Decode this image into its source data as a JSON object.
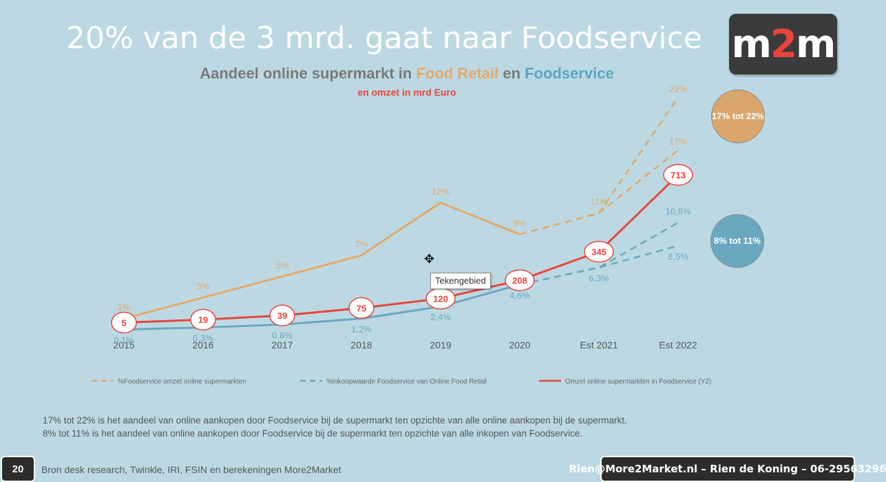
{
  "slide": {
    "title": "20% van de 3 mrd. gaat naar Foodservice",
    "logo": {
      "prefix": "m",
      "accent": "2",
      "suffix": "m"
    },
    "page_number": "20",
    "source": "Bron desk research, Twinkle, IRI, FSIN en berekeningen More2Market",
    "contact": "Rien@More2Market.nl – Rien de Koning – 06-29563296",
    "notes": [
      "17% tot 22% is het aandeel van online aankopen door Foodservice bij de supermarkt ten opzichte van alle online aankopen bij de supermarkt.",
      "8% tot 11% is het aandeel van online aankopen door Foodservice bij de supermarkt ten opzichte van alle inkopen van Foodservice."
    ],
    "badge_food_retail": "17% tot 22%",
    "badge_foodservice": "8% tot 11%",
    "tooltip": "Tekengebied"
  },
  "colors": {
    "food_retail": "#e2aa6a",
    "foodservice": "#6aa8c0",
    "omzet": "#e8453c",
    "background": "#bcd9e3"
  },
  "chart_data": {
    "type": "line",
    "title_parts": [
      "Aandeel online supermarkt in ",
      "Food Retail",
      " en ",
      "Foodservice"
    ],
    "subtitle": "en omzet in mrd Euro",
    "categories": [
      "2015",
      "2016",
      "2017",
      "2018",
      "2019",
      "2020",
      "Est 2021",
      "Est 2022"
    ],
    "series": [
      {
        "name": "%Foodservice omzet online supermarkten",
        "style": "solid+dashed-range",
        "values": [
          1,
          3,
          5,
          7,
          12,
          9,
          null,
          null
        ],
        "labels": [
          "1%",
          "3%",
          "5%",
          "7%",
          "12%",
          "9%",
          "11%",
          "17%"
        ],
        "range_high": [
          null,
          null,
          null,
          null,
          null,
          9,
          11,
          22
        ],
        "range_low": [
          null,
          null,
          null,
          null,
          null,
          9,
          11,
          17
        ],
        "range_high_label": "22%"
      },
      {
        "name": "%inkoopwaarde Foodservice van Online Food Retail",
        "style": "solid+dashed-range",
        "values": [
          0.1,
          0.3,
          0.6,
          1.2,
          2.4,
          4.6,
          null,
          null
        ],
        "labels": [
          "0,1%",
          "0,3%",
          "0,6%",
          "1,2%",
          "2,4%",
          "4,6%",
          "6,3%",
          "8,5%"
        ],
        "range_high": [
          null,
          null,
          null,
          null,
          null,
          4.6,
          6.3,
          10.8
        ],
        "range_low": [
          null,
          null,
          null,
          null,
          null,
          4.6,
          6.3,
          8.5
        ],
        "range_high_label": "10,8%"
      },
      {
        "name": "Omzet online supermarkten in Foodservice (Y2)",
        "style": "solid",
        "axis": "y2",
        "values": [
          5,
          19,
          39,
          75,
          120,
          208,
          345,
          713
        ],
        "labels": [
          "5",
          "19",
          "39",
          "75",
          "120",
          "208",
          "345",
          "713"
        ]
      }
    ],
    "legend_position": "bottom",
    "grid": false
  }
}
